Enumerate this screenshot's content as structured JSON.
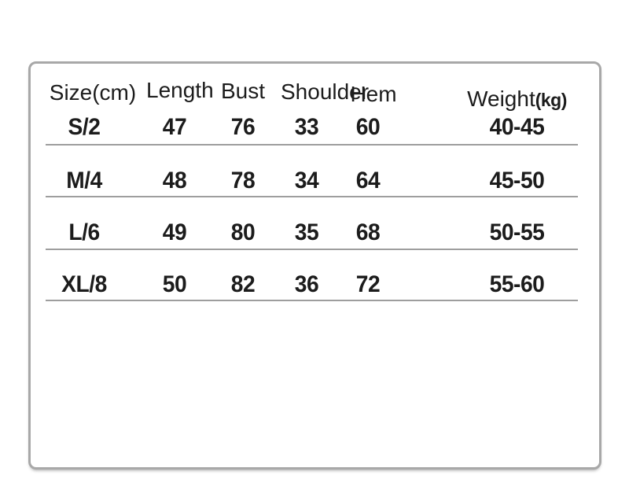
{
  "colors": {
    "background": "#ffffff",
    "panel_border": "#a8a8a8",
    "divider": "#9e9e9e",
    "text": "#1c1c1c"
  },
  "size_chart": {
    "columns": [
      {
        "label": "Size(cm)"
      },
      {
        "label": "Length"
      },
      {
        "label": "Bust"
      },
      {
        "label": "Shoulder"
      },
      {
        "label": "Hem"
      },
      {
        "label": "Weight",
        "suffix": "(kg)"
      }
    ],
    "rows": [
      {
        "size": "S/2",
        "length": "47",
        "bust": "76",
        "shoulder": "33",
        "hem": "60",
        "weight": "40-45"
      },
      {
        "size": "M/4",
        "length": "48",
        "bust": "78",
        "shoulder": "34",
        "hem": "64",
        "weight": "45-50"
      },
      {
        "size": "L/6",
        "length": "49",
        "bust": "80",
        "shoulder": "35",
        "hem": "68",
        "weight": "50-55"
      },
      {
        "size": "XL/8",
        "length": "50",
        "bust": "82",
        "shoulder": "36",
        "hem": "72",
        "weight": "55-60"
      }
    ]
  }
}
